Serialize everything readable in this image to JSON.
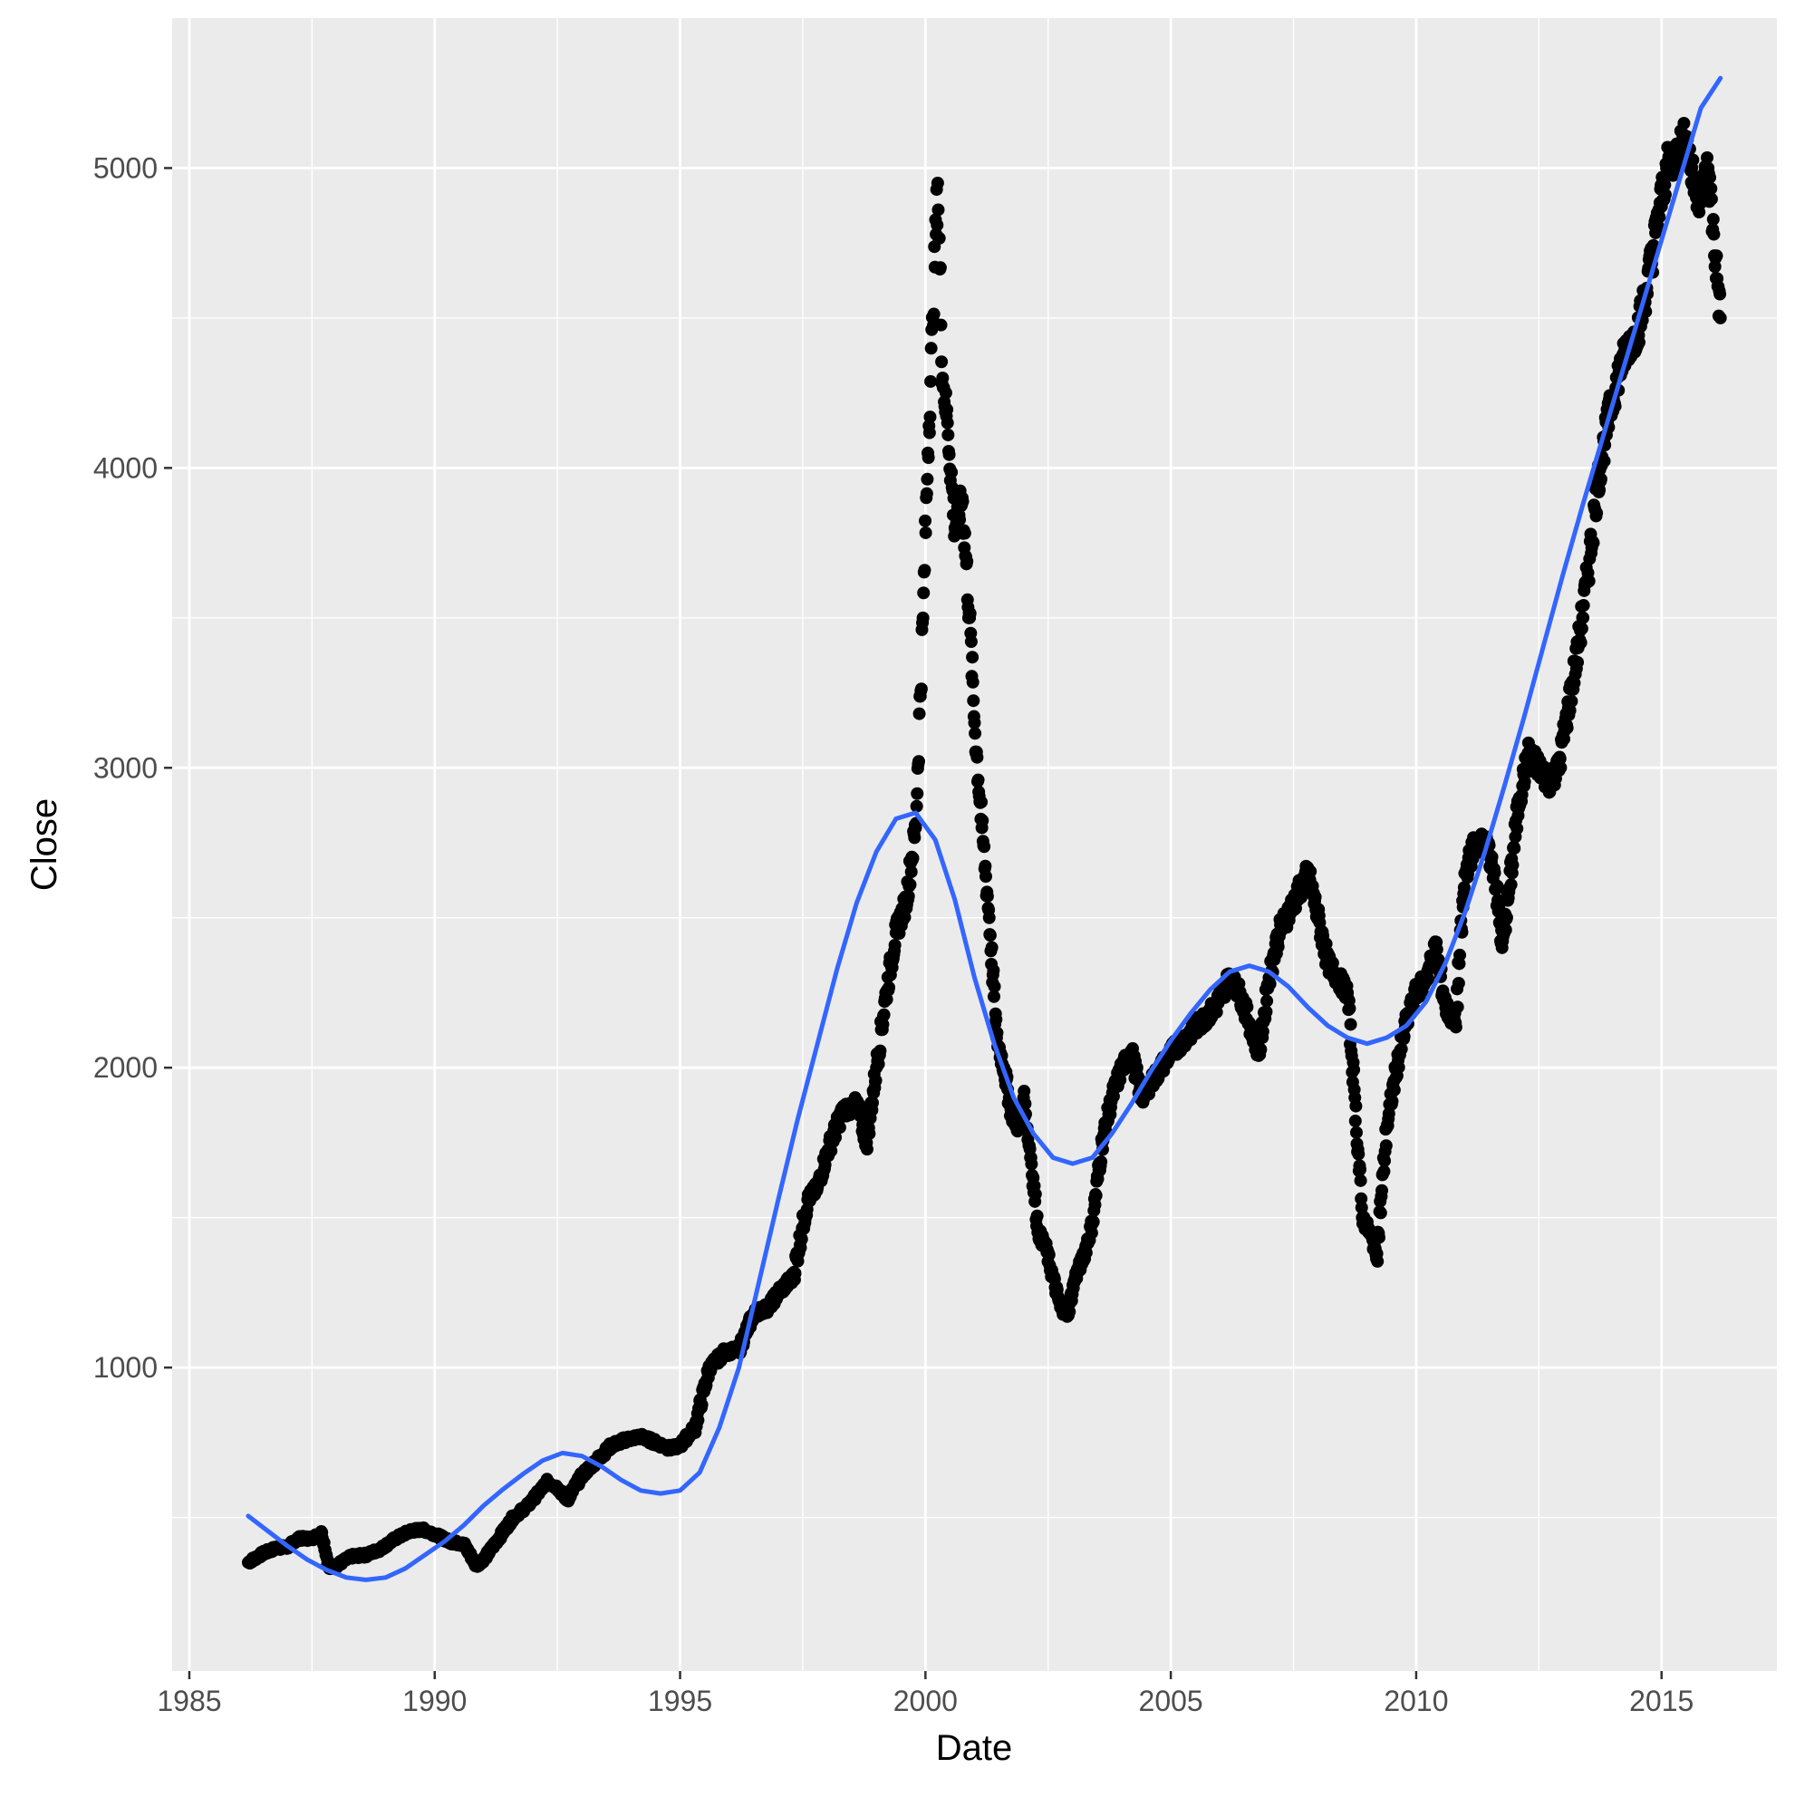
{
  "chart_data": {
    "type": "scatter",
    "title": "",
    "xlabel": "Date",
    "ylabel": "Close",
    "xlim": [
      1984.65,
      2017.35
    ],
    "ylim": [
      -12,
      5500
    ],
    "x_ticks": [
      1985,
      1990,
      1995,
      2000,
      2005,
      2010,
      2015
    ],
    "x_tick_labels": [
      "1985",
      "1990",
      "1995",
      "2000",
      "2005",
      "2010",
      "2015"
    ],
    "y_ticks": [
      1000,
      2000,
      3000,
      4000,
      5000
    ],
    "y_tick_labels": [
      "1000",
      "2000",
      "3000",
      "4000",
      "5000"
    ],
    "grid": true,
    "legend": "none",
    "colors": {
      "panel_background": "#ebebeb",
      "grid_major": "#ffffff",
      "points": "#000000",
      "smooth_line": "#3366ff"
    },
    "series": [
      {
        "type": "scatter",
        "x": [
          1986.2,
          1986.5,
          1986.8,
          1987.0,
          1987.2,
          1987.5,
          1987.7,
          1987.85,
          1988.0,
          1988.3,
          1988.6,
          1988.9,
          1989.2,
          1989.5,
          1989.75,
          1990.0,
          1990.3,
          1990.6,
          1990.85,
          1991.0,
          1991.3,
          1991.6,
          1991.9,
          1992.1,
          1992.3,
          1992.5,
          1992.7,
          1993.0,
          1993.3,
          1993.6,
          1993.9,
          1994.2,
          1994.5,
          1994.8,
          1995.0,
          1995.3,
          1995.6,
          1995.9,
          1996.2,
          1996.5,
          1996.8,
          1997.0,
          1997.3,
          1997.6,
          1997.8,
          1998.0,
          1998.3,
          1998.6,
          1998.8,
          1999.0,
          1999.2,
          1999.4,
          1999.6,
          1999.8,
          1999.95,
          2000.05,
          2000.15,
          2000.25,
          2000.35,
          2000.45,
          2000.6,
          2000.75,
          2000.9,
          2001.0,
          2001.15,
          2001.3,
          2001.45,
          2001.6,
          2001.75,
          2001.9,
          2002.0,
          2002.15,
          2002.3,
          2002.45,
          2002.6,
          2002.75,
          2002.9,
          2003.05,
          2003.2,
          2003.4,
          2003.6,
          2003.8,
          2004.0,
          2004.2,
          2004.4,
          2004.6,
          2004.8,
          2005.0,
          2005.3,
          2005.6,
          2005.9,
          2006.2,
          2006.4,
          2006.6,
          2006.8,
          2007.0,
          2007.2,
          2007.5,
          2007.8,
          2008.0,
          2008.2,
          2008.4,
          2008.6,
          2008.75,
          2008.9,
          2009.05,
          2009.2,
          2009.4,
          2009.6,
          2009.8,
          2010.0,
          2010.2,
          2010.4,
          2010.6,
          2010.8,
          2011.0,
          2011.2,
          2011.4,
          2011.6,
          2011.75,
          2011.9,
          2012.1,
          2012.3,
          2012.5,
          2012.7,
          2012.9,
          2013.1,
          2013.3,
          2013.5,
          2013.7,
          2013.9,
          2014.1,
          2014.3,
          2014.5,
          2014.7,
          2014.9,
          2015.1,
          2015.3,
          2015.5,
          2015.65,
          2015.8,
          2015.95,
          2016.1,
          2016.2
        ],
        "y": [
          350,
          380,
          400,
          400,
          430,
          430,
          450,
          330,
          340,
          370,
          375,
          395,
          430,
          455,
          460,
          445,
          420,
          410,
          340,
          360,
          430,
          500,
          540,
          580,
          620,
          600,
          560,
          640,
          690,
          740,
          760,
          770,
          750,
          730,
          740,
          800,
          1000,
          1050,
          1060,
          1180,
          1200,
          1250,
          1300,
          1560,
          1600,
          1720,
          1850,
          1880,
          1750,
          2000,
          2250,
          2450,
          2550,
          2800,
          3500,
          4050,
          4500,
          4950,
          4300,
          4150,
          3800,
          3900,
          3500,
          3150,
          2800,
          2500,
          2100,
          2000,
          1850,
          1800,
          1900,
          1700,
          1450,
          1400,
          1300,
          1200,
          1180,
          1300,
          1360,
          1480,
          1750,
          1900,
          2000,
          2050,
          1900,
          1950,
          2000,
          2050,
          2100,
          2150,
          2200,
          2300,
          2250,
          2150,
          2050,
          2300,
          2450,
          2550,
          2650,
          2500,
          2350,
          2300,
          2250,
          1900,
          1500,
          1450,
          1380,
          1800,
          2000,
          2150,
          2250,
          2300,
          2400,
          2200,
          2150,
          2650,
          2750,
          2750,
          2650,
          2400,
          2600,
          2900,
          3050,
          3000,
          2950,
          3000,
          3200,
          3400,
          3650,
          3950,
          4150,
          4300,
          4400,
          4450,
          4600,
          4800,
          5000,
          5050,
          5100,
          4950,
          4900,
          5000,
          4700,
          4500
        ]
      },
      {
        "type": "line",
        "x": [
          1986.2,
          1986.6,
          1987.0,
          1987.4,
          1987.8,
          1988.2,
          1988.6,
          1989.0,
          1989.4,
          1989.8,
          1990.2,
          1990.6,
          1991.0,
          1991.4,
          1991.8,
          1992.2,
          1992.6,
          1993.0,
          1993.4,
          1993.8,
          1994.2,
          1994.6,
          1995.0,
          1995.4,
          1995.8,
          1996.2,
          1996.6,
          1997.0,
          1997.4,
          1997.8,
          1998.2,
          1998.6,
          1999.0,
          1999.4,
          1999.8,
          2000.2,
          2000.6,
          2001.0,
          2001.4,
          2001.8,
          2002.2,
          2002.6,
          2003.0,
          2003.4,
          2003.8,
          2004.2,
          2004.6,
          2005.0,
          2005.4,
          2005.8,
          2006.2,
          2006.6,
          2007.0,
          2007.4,
          2007.8,
          2008.2,
          2008.6,
          2009.0,
          2009.4,
          2009.8,
          2010.2,
          2010.6,
          2011.0,
          2011.4,
          2011.8,
          2012.2,
          2012.6,
          2013.0,
          2013.4,
          2013.8,
          2014.2,
          2014.6,
          2015.0,
          2015.4,
          2015.8,
          2016.2
        ],
        "y": [
          505,
          455,
          405,
          360,
          325,
          300,
          292,
          300,
          330,
          375,
          420,
          475,
          540,
          595,
          645,
          690,
          715,
          705,
          670,
          625,
          590,
          580,
          590,
          650,
          800,
          1000,
          1280,
          1560,
          1830,
          2080,
          2330,
          2550,
          2720,
          2830,
          2850,
          2760,
          2560,
          2300,
          2080,
          1900,
          1780,
          1700,
          1680,
          1700,
          1780,
          1880,
          1990,
          2090,
          2180,
          2260,
          2320,
          2340,
          2320,
          2270,
          2200,
          2140,
          2100,
          2080,
          2100,
          2140,
          2220,
          2350,
          2520,
          2720,
          2940,
          3170,
          3410,
          3650,
          3880,
          4100,
          4320,
          4540,
          4760,
          4980,
          5200,
          5300
        ]
      }
    ]
  }
}
